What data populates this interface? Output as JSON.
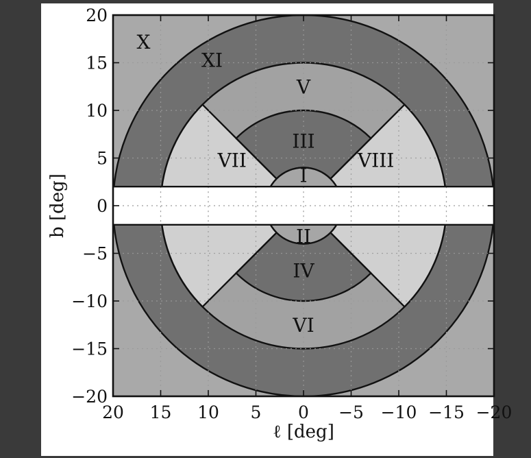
{
  "colors": {
    "page_background": "#3a3a3a",
    "figure_background": "#ffffff",
    "region_x": "#a9a9a9",
    "region_xi": "#707070",
    "region_v_vi": "#a2a2a2",
    "region_vii_viii": "#d0d0d0",
    "region_iii_iv": "#6f6f6f",
    "region_i_ii": "#a6a6a6",
    "excluded_band": "#ffffff",
    "outline": "#111111",
    "grid": "#9a9a9a"
  },
  "chart_data": {
    "type": "region-map",
    "xlabel": "ℓ [deg]",
    "ylabel": "b [deg]",
    "xlim": [
      20,
      -20
    ],
    "ylim": [
      -20,
      20
    ],
    "grid": true,
    "x_ticks": [
      20,
      15,
      10,
      5,
      0,
      -5,
      -10,
      -15,
      -20
    ],
    "x_tick_labels": [
      "20",
      "15",
      "10",
      "5",
      "0",
      "−5",
      "−10",
      "−15",
      "−20"
    ],
    "y_ticks": [
      20,
      15,
      10,
      5,
      0,
      -5,
      -10,
      -15,
      -20
    ],
    "y_tick_labels": [
      "20",
      "15",
      "10",
      "5",
      "0",
      "−5",
      "−10",
      "−15",
      "−20"
    ],
    "boundaries": {
      "circle_radii_deg": [
        4,
        10,
        15,
        20
      ],
      "diagonal_cut_angle_deg": 45,
      "excluded_band_abs_b_deg": 2
    },
    "regions": [
      {
        "id": "I",
        "label": "I",
        "l": 0,
        "b": 3.2
      },
      {
        "id": "II",
        "label": "II",
        "l": 0,
        "b": -3.2
      },
      {
        "id": "III",
        "label": "III",
        "l": 0,
        "b": 6.8
      },
      {
        "id": "IV",
        "label": "IV",
        "l": 0,
        "b": -6.8
      },
      {
        "id": "V",
        "label": "V",
        "l": 0,
        "b": 12.5
      },
      {
        "id": "VI",
        "label": "VI",
        "l": 0,
        "b": -12.5
      },
      {
        "id": "VII",
        "label": "VII",
        "l": 7.5,
        "b": 4.8
      },
      {
        "id": "VIII",
        "label": "VIII",
        "l": -7.6,
        "b": 4.8
      },
      {
        "id": "X",
        "label": "X",
        "l": 16.8,
        "b": 17.2
      },
      {
        "id": "XI",
        "label": "XI",
        "l": 9.6,
        "b": 15.3
      }
    ]
  }
}
